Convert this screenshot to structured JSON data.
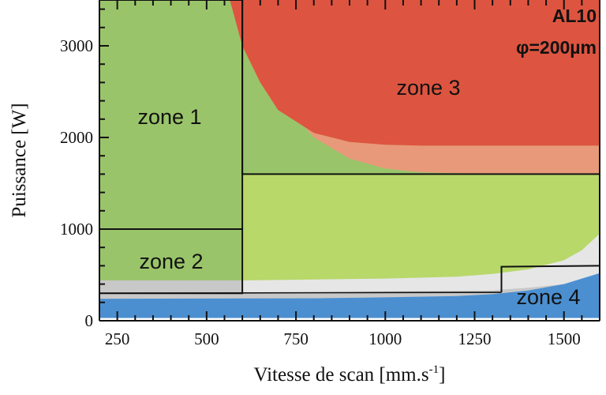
{
  "chart_data": {
    "type": "area",
    "title": "",
    "xlabel": "Vitesse de scan [mm.s",
    "xlabel_sup": "-1",
    "xlabel_end": "]",
    "ylabel": "Puissance [W]",
    "xlim": [
      200,
      1600
    ],
    "ylim": [
      0,
      3500
    ],
    "x_ticks": [
      250,
      500,
      750,
      1000,
      1250,
      1500
    ],
    "y_ticks": [
      0,
      1000,
      2000,
      3000
    ],
    "annotations": [
      "AL10",
      "φ=200µm"
    ],
    "colors": {
      "zone1": "#9ac46a",
      "zone2": "#9ac46a",
      "zone3": "#dd5540",
      "zone3_transition": "#e8997a",
      "light_green": "#b8d86a",
      "light_gray": "#e6e6e6",
      "mid_gray": "#c8c8c8",
      "zone4": "#4b8fd0"
    },
    "zones": [
      {
        "name": "zone 1",
        "x_range": [
          200,
          600
        ],
        "p_range": [
          1000,
          3500
        ]
      },
      {
        "name": "zone 2",
        "x_range": [
          200,
          600
        ],
        "p_range": [
          300,
          1000
        ]
      },
      {
        "name": "zone 3",
        "x_range": [
          600,
          1600
        ],
        "p_range": [
          1600,
          3500
        ]
      },
      {
        "name": "zone 4",
        "x_range": [
          200,
          1600
        ],
        "p_range": [
          0,
          300
        ]
      }
    ],
    "boundaries": [
      {
        "name": "zone3_lower_edge",
        "x": [
          565,
          600,
          650,
          700,
          800,
          900,
          1000,
          1100,
          1200,
          1400,
          1600
        ],
        "y": [
          3500,
          3000,
          2600,
          2300,
          2050,
          1950,
          1920,
          1910,
          1910,
          1910,
          1910
        ]
      },
      {
        "name": "transition_lower_edge",
        "x": [
          600,
          650,
          700,
          800,
          900,
          1000,
          1100,
          1200,
          1600
        ],
        "y": [
          3500,
          2900,
          2450,
          2000,
          1770,
          1660,
          1620,
          1610,
          1600
        ]
      },
      {
        "name": "light_green_lower_edge",
        "x": [
          600,
          800,
          1000,
          1200,
          1300,
          1400,
          1500,
          1550,
          1600
        ],
        "y": [
          440,
          450,
          460,
          480,
          510,
          560,
          660,
          770,
          950
        ]
      },
      {
        "name": "light_gray_lower_edge",
        "x": [
          200,
          600,
          1000,
          1300,
          1325,
          1400,
          1500,
          1600
        ],
        "y": [
          300,
          300,
          320,
          330,
          340,
          360,
          400,
          450
        ]
      },
      {
        "name": "zone4_upper_edge",
        "x": [
          200,
          800,
          1000,
          1200,
          1300,
          1400,
          1500,
          1600
        ],
        "y": [
          240,
          245,
          255,
          270,
          290,
          330,
          400,
          520
        ]
      }
    ],
    "outlines": [
      {
        "name": "zone1_box",
        "x": [
          200,
          600,
          600,
          200
        ],
        "y": [
          3500,
          3500,
          1000,
          1000
        ]
      },
      {
        "name": "zone2_box",
        "x": [
          200,
          600,
          600,
          200
        ],
        "y": [
          1000,
          1000,
          300,
          300
        ]
      },
      {
        "name": "zone3_box",
        "x": [
          600,
          600,
          1600
        ],
        "y": [
          3500,
          1600,
          1600
        ]
      },
      {
        "name": "zone4_step",
        "x": [
          1325,
          1325,
          1600
        ],
        "y": [
          310,
          590,
          600
        ]
      }
    ]
  }
}
